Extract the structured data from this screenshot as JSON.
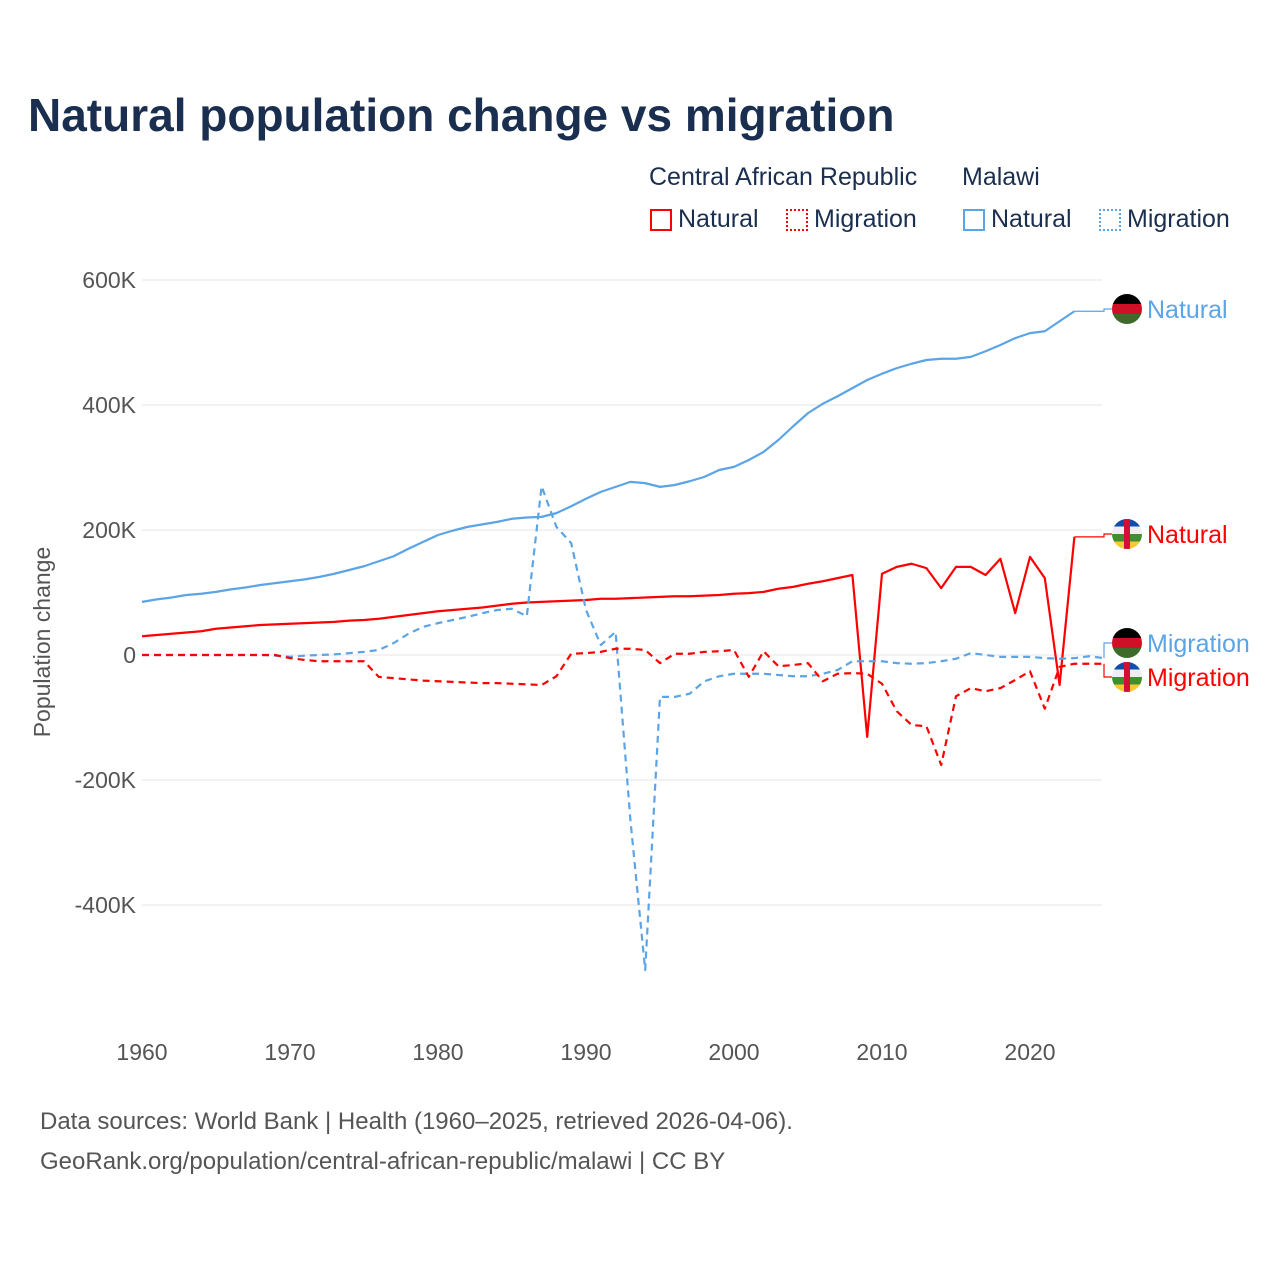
{
  "title": "Natural population change vs migration",
  "legend": {
    "groups": [
      {
        "name": "Central African Republic",
        "items": [
          "Natural",
          "Migration"
        ],
        "color": "#ff0000"
      },
      {
        "name": "Malawi",
        "items": [
          "Natural",
          "Migration"
        ],
        "color": "#5ba4e6"
      }
    ]
  },
  "footer": {
    "line1": "Data sources: World Bank | Health (1960–2025, retrieved 2026-04-06).",
    "line2": "GeoRank.org/population/central-african-republic/malawi | CC BY"
  },
  "chart_data": {
    "type": "line",
    "title": "Natural population change vs migration",
    "ylabel": "Population change",
    "xlabel": "",
    "xlim": [
      1960,
      2025
    ],
    "ylim": [
      -600000,
      650000
    ],
    "xticks": [
      1960,
      1970,
      1980,
      1990,
      2000,
      2010,
      2020
    ],
    "xtick_labels": [
      "1960",
      "1970",
      "1980",
      "1990",
      "2000",
      "2010",
      "2020"
    ],
    "yticks": [
      600000,
      400000,
      200000,
      0,
      -200000,
      -400000
    ],
    "ytick_labels": [
      "600K",
      "400K",
      "200K",
      "0",
      "-200K",
      "-400K"
    ],
    "grid": true,
    "series": [
      {
        "name": "Malawi Natural",
        "label": "Natural",
        "color": "#5ba4e6",
        "dash": false,
        "flag": "malawi",
        "x_start": 1960,
        "values": [
          85,
          89,
          92,
          96,
          98,
          101,
          105,
          108,
          112,
          115,
          118,
          121,
          125,
          130,
          136,
          142,
          150,
          158,
          170,
          181,
          192,
          199,
          205,
          209,
          213,
          218,
          220,
          221,
          227,
          238,
          250,
          261,
          269,
          277,
          275,
          269,
          272,
          278,
          285,
          296,
          301,
          312,
          325,
          344,
          366,
          387,
          402,
          414,
          427,
          440,
          450,
          459,
          466,
          472,
          474,
          474,
          477,
          486,
          496,
          507,
          515,
          518,
          534,
          550
        ]
      },
      {
        "name": "Central African Republic Natural",
        "label": "Natural",
        "color": "#ff0000",
        "dash": false,
        "flag": "car",
        "x_start": 1960,
        "values": [
          30,
          32,
          34,
          36,
          38,
          42,
          44,
          46,
          48,
          49,
          50,
          51,
          52,
          53,
          55,
          56,
          58,
          61,
          64,
          67,
          70,
          72,
          74,
          76,
          79,
          82,
          84,
          85,
          86,
          87,
          88,
          90,
          90,
          91,
          92,
          93,
          94,
          94,
          95,
          96,
          98,
          99,
          101,
          106,
          109,
          114,
          118,
          123,
          128,
          -131,
          130,
          141,
          146,
          139,
          107,
          141,
          141,
          128,
          154,
          67,
          157,
          123,
          -48,
          189
        ]
      },
      {
        "name": "Malawi Migration",
        "label": "Migration",
        "color": "#5ba4e6",
        "dash": true,
        "flag": "malawi",
        "x_start": 1960,
        "values": [
          0,
          0,
          0,
          0,
          0,
          0,
          0,
          0,
          0,
          -1,
          -3,
          -1,
          0,
          1,
          3,
          5,
          8,
          19,
          34,
          45,
          51,
          56,
          61,
          67,
          72,
          74,
          62,
          270,
          205,
          179,
          72,
          16,
          37,
          -264,
          -504,
          -67,
          -67,
          -62,
          -42,
          -34,
          -30,
          -30,
          -30,
          -32,
          -34,
          -34,
          -30,
          -24,
          -10,
          -10,
          -10,
          -13,
          -14,
          -13,
          -10,
          -6,
          3,
          0,
          -3,
          -3,
          -3,
          -5,
          -6,
          -5,
          -2,
          -5
        ]
      },
      {
        "name": "Central African Republic Migration",
        "label": "Migration",
        "color": "#ff0000",
        "dash": true,
        "flag": "car",
        "x_start": 1960,
        "values": [
          0,
          0,
          0,
          0,
          0,
          0,
          0,
          0,
          0,
          0,
          -5,
          -8,
          -10,
          -10,
          -10,
          -10,
          -35,
          -37,
          -39,
          -41,
          -42,
          -43,
          -44,
          -45,
          -45,
          -46,
          -47,
          -48,
          -34,
          2,
          3,
          5,
          10,
          10,
          8,
          -13,
          2,
          2,
          5,
          6,
          8,
          -35,
          6,
          -18,
          -16,
          -13,
          -42,
          -30,
          -29,
          -30,
          -46,
          -90,
          -112,
          -114,
          -176,
          -66,
          -53,
          -58,
          -53,
          -40,
          -26,
          -86,
          -19,
          -14,
          -14,
          -14
        ]
      }
    ],
    "value_unit": "thousands"
  }
}
